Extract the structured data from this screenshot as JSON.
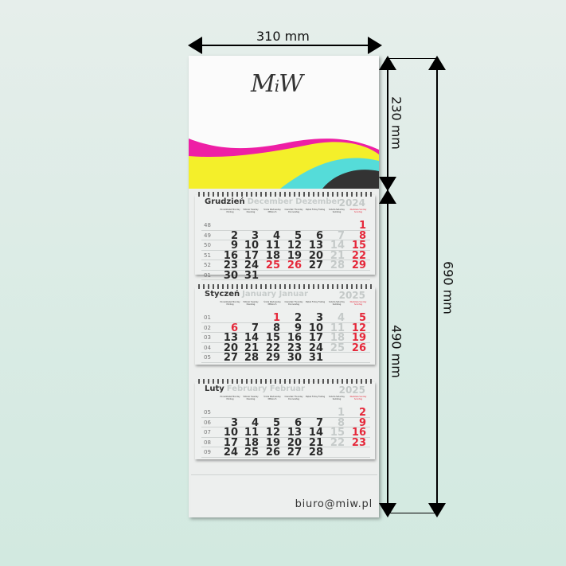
{
  "dimensions": {
    "width": "310 mm",
    "header_height": "230 mm",
    "pads_height": "490 mm",
    "total_height": "690 mm"
  },
  "logo": "MiW",
  "email": "biuro@miw.pl",
  "colors": {
    "magenta": "#ee1fa5",
    "yellow": "#f4ef2a",
    "cyan": "#55dcd9",
    "black": "#333333",
    "red": "#e5283a"
  },
  "weekdays": [
    "Poniedziałek Monday Montag",
    "Wtorek Tuesday Dienstag",
    "Środa Wednesday Mittwoch",
    "Czwartek Thursday Donnerstag",
    "Piątek Friday Freitag",
    "Sobota Saturday Samstag",
    "Niedziela Sunday Sonntag"
  ],
  "months": [
    {
      "name": "Grudzień",
      "name_alt": "December Dezember",
      "year": "2024",
      "holidays": [
        25,
        26
      ],
      "weeks": [
        [
          "48",
          [
            null,
            null,
            null,
            null,
            null,
            null,
            1
          ]
        ],
        [
          "49",
          [
            2,
            3,
            4,
            5,
            6,
            7,
            8
          ]
        ],
        [
          "50",
          [
            9,
            10,
            11,
            12,
            13,
            14,
            15
          ]
        ],
        [
          "51",
          [
            16,
            17,
            18,
            19,
            20,
            21,
            22
          ]
        ],
        [
          "52",
          [
            23,
            24,
            25,
            26,
            27,
            28,
            29
          ]
        ],
        [
          "01",
          [
            30,
            31,
            null,
            null,
            null,
            null,
            null
          ]
        ]
      ]
    },
    {
      "name": "Styczeń",
      "name_alt": "January Januar",
      "year": "2025",
      "holidays": [
        1,
        6
      ],
      "weeks": [
        [
          "01",
          [
            null,
            null,
            1,
            2,
            3,
            4,
            5
          ]
        ],
        [
          "02",
          [
            6,
            7,
            8,
            9,
            10,
            11,
            12
          ]
        ],
        [
          "03",
          [
            13,
            14,
            15,
            16,
            17,
            18,
            19
          ]
        ],
        [
          "04",
          [
            20,
            21,
            22,
            23,
            24,
            25,
            26
          ]
        ],
        [
          "05",
          [
            27,
            28,
            29,
            30,
            31,
            null,
            null
          ]
        ]
      ]
    },
    {
      "name": "Luty",
      "name_alt": "February Februar",
      "year": "2025",
      "holidays": [],
      "weeks": [
        [
          "05",
          [
            null,
            null,
            null,
            null,
            null,
            1,
            2
          ]
        ],
        [
          "06",
          [
            3,
            4,
            5,
            6,
            7,
            8,
            9
          ]
        ],
        [
          "07",
          [
            10,
            11,
            12,
            13,
            14,
            15,
            16
          ]
        ],
        [
          "08",
          [
            17,
            18,
            19,
            20,
            21,
            22,
            23
          ]
        ],
        [
          "09",
          [
            24,
            25,
            26,
            27,
            28,
            null,
            null
          ]
        ]
      ]
    }
  ]
}
